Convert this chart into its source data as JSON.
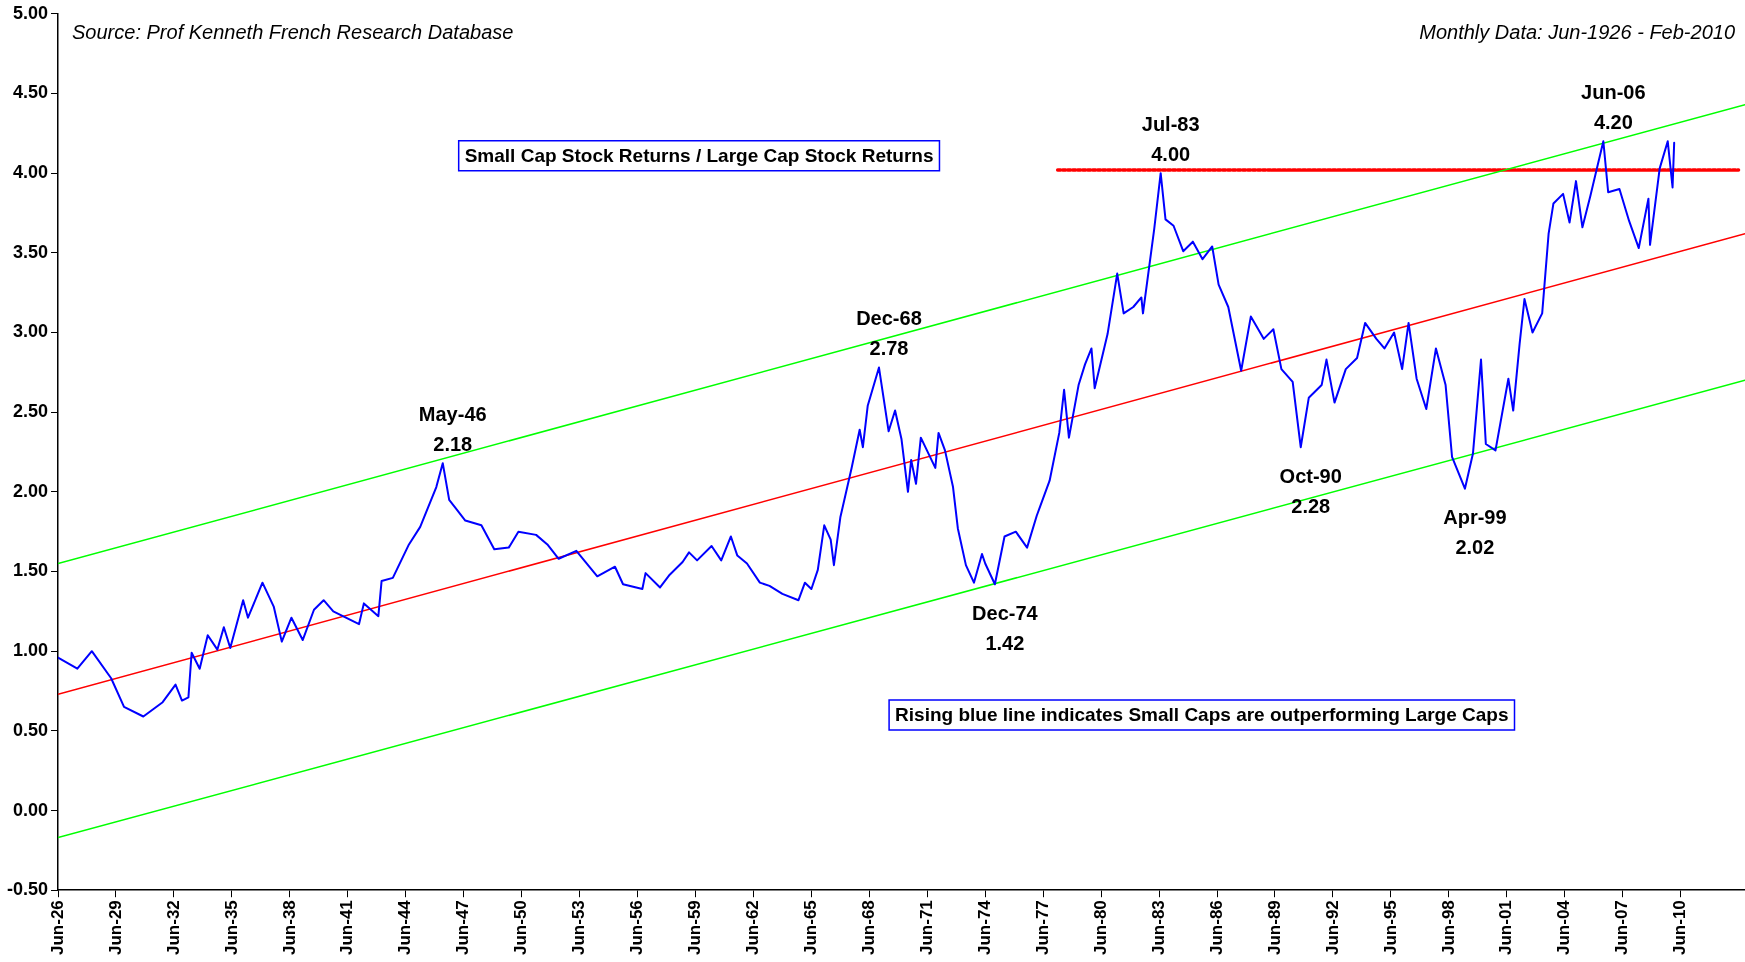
{
  "chart_data": {
    "type": "line",
    "title": "Small Cap Stock Returns / Large Cap Stock Returns",
    "xlim": [
      "1926-06",
      "2013-10"
    ],
    "ylim": [
      -0.5,
      5
    ],
    "xticks": [
      {
        "value": "1926-06",
        "label": "Jun-26"
      },
      {
        "value": "1929-06",
        "label": "Jun-29"
      },
      {
        "value": "1932-06",
        "label": "Jun-32"
      },
      {
        "value": "1935-06",
        "label": "Jun-35"
      },
      {
        "value": "1938-06",
        "label": "Jun-38"
      },
      {
        "value": "1941-06",
        "label": "Jun-41"
      },
      {
        "value": "1944-06",
        "label": "Jun-44"
      },
      {
        "value": "1947-06",
        "label": "Jun-47"
      },
      {
        "value": "1950-06",
        "label": "Jun-50"
      },
      {
        "value": "1953-06",
        "label": "Jun-53"
      },
      {
        "value": "1956-06",
        "label": "Jun-56"
      },
      {
        "value": "1959-06",
        "label": "Jun-59"
      },
      {
        "value": "1962-06",
        "label": "Jun-62"
      },
      {
        "value": "1965-06",
        "label": "Jun-65"
      },
      {
        "value": "1968-06",
        "label": "Jun-68"
      },
      {
        "value": "1971-06",
        "label": "Jun-71"
      },
      {
        "value": "1974-06",
        "label": "Jun-74"
      },
      {
        "value": "1977-06",
        "label": "Jun-77"
      },
      {
        "value": "1980-06",
        "label": "Jun-80"
      },
      {
        "value": "1983-06",
        "label": "Jun-83"
      },
      {
        "value": "1986-06",
        "label": "Jun-86"
      },
      {
        "value": "1989-06",
        "label": "Jun-89"
      },
      {
        "value": "1992-06",
        "label": "Jun-92"
      },
      {
        "value": "1995-06",
        "label": "Jun-95"
      },
      {
        "value": "1998-06",
        "label": "Jun-98"
      },
      {
        "value": "2001-06",
        "label": "Jun-01"
      },
      {
        "value": "2004-06",
        "label": "Jun-04"
      },
      {
        "value": "2007-06",
        "label": "Jun-07"
      },
      {
        "value": "2010-06",
        "label": "Jun-10"
      }
    ],
    "yticks": [
      {
        "value": -0.5,
        "label": "-0.50"
      },
      {
        "value": 0,
        "label": "0.00"
      },
      {
        "value": 0.5,
        "label": "0.50"
      },
      {
        "value": 1,
        "label": "1.00"
      },
      {
        "value": 1.5,
        "label": "1.50"
      },
      {
        "value": 2,
        "label": "2.00"
      },
      {
        "value": 2.5,
        "label": "2.50"
      },
      {
        "value": 3,
        "label": "3.00"
      },
      {
        "value": 3.5,
        "label": "3.50"
      },
      {
        "value": 4,
        "label": "4.00"
      },
      {
        "value": 4.5,
        "label": "4.50"
      },
      {
        "value": 5,
        "label": "5.00"
      }
    ],
    "series": [
      {
        "color": "#0000ff",
        "x": [
          "1926-06",
          "1927-06",
          "1928-03",
          "1929-03",
          "1929-11",
          "1930-11",
          "1931-11",
          "1932-07",
          "1932-11",
          "1933-03",
          "1933-05",
          "1933-10",
          "1934-03",
          "1934-09",
          "1935-01",
          "1935-05",
          "1936-01",
          "1936-04",
          "1937-01",
          "1937-08",
          "1938-01",
          "1938-07",
          "1939-02",
          "1939-09",
          "1940-03",
          "1940-09",
          "1942-01",
          "1942-04",
          "1943-01",
          "1943-03",
          "1943-10",
          "1944-08",
          "1945-03",
          "1946-01",
          "1946-05",
          "1946-09",
          "1947-07",
          "1948-05",
          "1949-01",
          "1949-10",
          "1950-04",
          "1951-03",
          "1951-10",
          "1952-05",
          "1953-04",
          "1954-05",
          "1955-04",
          "1955-09",
          "1956-09",
          "1956-11",
          "1957-08",
          "1958-02",
          "1958-10",
          "1959-02",
          "1959-07",
          "1960-04",
          "1960-10",
          "1961-04",
          "1961-08",
          "1962-02",
          "1962-10",
          "1963-04",
          "1963-12",
          "1964-10",
          "1965-02",
          "1965-06",
          "1965-10",
          "1966-02",
          "1966-06",
          "1966-08",
          "1966-12",
          "1967-07",
          "1967-12",
          "1968-02",
          "1968-05",
          "1968-12",
          "1969-06",
          "1969-10",
          "1970-02",
          "1970-06",
          "1970-08",
          "1970-11",
          "1971-02",
          "1971-11",
          "1972-01",
          "1972-05",
          "1972-10",
          "1973-01",
          "1973-06",
          "1973-11",
          "1974-04",
          "1974-06",
          "1974-12",
          "1975-06",
          "1976-01",
          "1976-08",
          "1977-02",
          "1977-10",
          "1978-04",
          "1978-07",
          "1978-10",
          "1979-04",
          "1979-08",
          "1979-12",
          "1980-02",
          "1980-10",
          "1981-04",
          "1981-08",
          "1982-02",
          "1982-07",
          "1982-08",
          "1983-03",
          "1983-07",
          "1983-10",
          "1984-03",
          "1984-09",
          "1985-03",
          "1985-09",
          "1986-03",
          "1986-07",
          "1987-01",
          "1987-09",
          "1988-03",
          "1988-11",
          "1989-05",
          "1989-10",
          "1990-05",
          "1990-10",
          "1991-03",
          "1991-11",
          "1992-02",
          "1992-07",
          "1993-02",
          "1993-09",
          "1994-02",
          "1994-09",
          "1995-02",
          "1995-08",
          "1996-01",
          "1996-05",
          "1996-10",
          "1997-04",
          "1997-10",
          "1998-04",
          "1998-08",
          "1999-04",
          "1999-09",
          "2000-02",
          "2000-05",
          "2000-11",
          "2001-07",
          "2001-10",
          "2002-02",
          "2002-05",
          "2002-10",
          "2003-04",
          "2003-08",
          "2003-11",
          "2004-05",
          "2004-09",
          "2005-01",
          "2005-05",
          "2005-10",
          "2006-06",
          "2006-09",
          "2007-04",
          "2007-10",
          "2008-04",
          "2008-10",
          "2008-11",
          "2009-05",
          "2009-10",
          "2010-01",
          "2010-02"
        ],
        "values": [
          0.96,
          0.89,
          1.0,
          0.83,
          0.65,
          0.59,
          0.68,
          0.79,
          0.69,
          0.71,
          0.99,
          0.89,
          1.1,
          1.01,
          1.15,
          1.02,
          1.32,
          1.21,
          1.43,
          1.28,
          1.06,
          1.21,
          1.07,
          1.26,
          1.32,
          1.25,
          1.17,
          1.3,
          1.22,
          1.44,
          1.46,
          1.67,
          1.78,
          2.03,
          2.18,
          1.95,
          1.82,
          1.79,
          1.64,
          1.65,
          1.75,
          1.73,
          1.67,
          1.58,
          1.63,
          1.47,
          1.53,
          1.42,
          1.39,
          1.49,
          1.4,
          1.48,
          1.56,
          1.62,
          1.57,
          1.66,
          1.57,
          1.72,
          1.6,
          1.55,
          1.43,
          1.41,
          1.36,
          1.32,
          1.43,
          1.39,
          1.51,
          1.79,
          1.7,
          1.54,
          1.84,
          2.15,
          2.39,
          2.28,
          2.54,
          2.78,
          2.38,
          2.51,
          2.33,
          2.0,
          2.2,
          2.05,
          2.34,
          2.15,
          2.37,
          2.26,
          2.03,
          1.77,
          1.54,
          1.43,
          1.61,
          1.55,
          1.42,
          1.72,
          1.75,
          1.65,
          1.85,
          2.07,
          2.37,
          2.64,
          2.34,
          2.67,
          2.8,
          2.9,
          2.65,
          2.99,
          3.37,
          3.12,
          3.16,
          3.22,
          3.12,
          3.65,
          4.0,
          3.71,
          3.67,
          3.51,
          3.57,
          3.46,
          3.54,
          3.3,
          3.16,
          2.76,
          3.1,
          2.96,
          3.02,
          2.77,
          2.69,
          2.28,
          2.59,
          2.67,
          2.83,
          2.56,
          2.77,
          2.84,
          3.06,
          2.96,
          2.9,
          3.0,
          2.77,
          3.06,
          2.71,
          2.52,
          2.9,
          2.67,
          2.22,
          2.02,
          2.24,
          2.83,
          2.3,
          2.26,
          2.71,
          2.51,
          2.93,
          3.21,
          3.0,
          3.12,
          3.62,
          3.81,
          3.87,
          3.69,
          3.95,
          3.66,
          3.86,
          4.2,
          3.88,
          3.9,
          3.7,
          3.53,
          3.84,
          3.55,
          4.03,
          4.2,
          3.91,
          4.19
        ]
      },
      {
        "color": "#ff0000",
        "x": [
          "1926-06",
          "2013-10"
        ],
        "values": [
          0.73,
          3.62
        ]
      },
      {
        "color": "#00ff00",
        "x": [
          "1926-06",
          "2013-10"
        ],
        "values": [
          1.55,
          4.43
        ]
      },
      {
        "color": "#00ff00",
        "x": [
          "1926-06",
          "2013-10"
        ],
        "values": [
          -0.17,
          2.7
        ]
      },
      {
        "color": "#ff0000",
        "line_style": "dotted",
        "x": [
          "1978-03",
          "2013-06"
        ],
        "values": [
          4.02,
          4.02
        ]
      }
    ],
    "annotations": [
      "Source: Prof Kenneth French Research Database",
      "Monthly Data: Jun-1926 - Feb-2010",
      "Rising blue line indicates Small Caps are outperforming Large Caps",
      {
        "text": "May-46 2.18",
        "x": "1946-05",
        "y": 2.18
      },
      {
        "text": "Dec-68 2.78",
        "x": "1968-12",
        "y": 2.78
      },
      {
        "text": "Dec-74 1.42",
        "x": "1974-12",
        "y": 1.42
      },
      {
        "text": "Jul-83 4.00",
        "x": "1983-07",
        "y": 4.0
      },
      {
        "text": "Oct-90 2.28",
        "x": "1990-10",
        "y": 2.28
      },
      {
        "text": "Apr-99 2.02",
        "x": "1999-04",
        "y": 2.02
      },
      {
        "text": "Jun-06 4.20",
        "x": "2006-06",
        "y": 4.2
      }
    ]
  }
}
